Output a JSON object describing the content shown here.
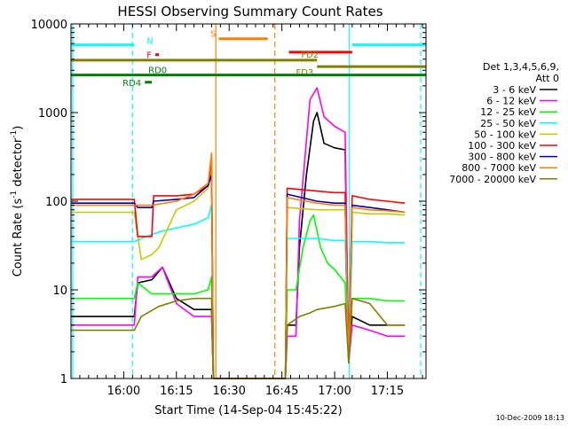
{
  "chart_data": {
    "type": "line",
    "title": "HESSI Observing Summary Count Rates",
    "xlabel": "Start Time (14-Sep-04 15:45:22)",
    "ylabel": "Count Rate (s⁻¹ detector⁻¹)",
    "ylabel_parts": {
      "main": "Count Rate (s",
      "exp1": "-1",
      "mid": " detector",
      "exp2": "-1",
      "end": ")"
    },
    "y_scale": "log",
    "ylim": [
      1,
      10000
    ],
    "y_ticks": [
      1,
      10,
      100,
      1000,
      10000
    ],
    "x_range_minutes": [
      "15:45:22",
      "17:26:40"
    ],
    "x_ticks": [
      "16:00",
      "16:15",
      "16:30",
      "16:45",
      "17:00",
      "17:15"
    ],
    "timestamp": "10-Dec-2009 18:13",
    "legend_title": [
      "Det 1,3,4,5,6,9,",
      "Att 0"
    ],
    "legend_position": "right",
    "series": [
      {
        "name": "3 - 6 keV",
        "color": "#000000",
        "points": [
          [
            "15:45",
            5
          ],
          [
            "16:03",
            5
          ],
          [
            "16:04",
            12
          ],
          [
            "16:08",
            13
          ],
          [
            "16:11",
            18
          ],
          [
            "16:15",
            8
          ],
          [
            "16:20",
            6
          ],
          [
            "16:25",
            6
          ],
          [
            "16:25.5",
            1
          ],
          [
            "16:46",
            1
          ],
          [
            "16:46.5",
            4
          ],
          [
            "16:49",
            4
          ],
          [
            "16:50",
            30
          ],
          [
            "16:52",
            200
          ],
          [
            "16:54",
            800
          ],
          [
            "16:55",
            1000
          ],
          [
            "16:57",
            450
          ],
          [
            "17:00",
            400
          ],
          [
            "17:03",
            380
          ],
          [
            "17:04",
            1.5
          ],
          [
            "17:05",
            5
          ],
          [
            "17:10",
            4
          ],
          [
            "17:15",
            4
          ],
          [
            "17:20",
            4
          ]
        ]
      },
      {
        "name": "6 - 12 keV",
        "color": "#ff00ff",
        "points": [
          [
            "15:45",
            4
          ],
          [
            "16:03",
            4
          ],
          [
            "16:04",
            14
          ],
          [
            "16:08",
            14
          ],
          [
            "16:11",
            18
          ],
          [
            "16:15",
            7
          ],
          [
            "16:20",
            5
          ],
          [
            "16:25",
            5
          ],
          [
            "16:25.5",
            1
          ],
          [
            "16:46",
            1
          ],
          [
            "16:46.5",
            3
          ],
          [
            "16:49",
            3
          ],
          [
            "16:50",
            60
          ],
          [
            "16:53",
            1400
          ],
          [
            "16:55",
            1900
          ],
          [
            "16:57",
            900
          ],
          [
            "17:00",
            700
          ],
          [
            "17:03",
            600
          ],
          [
            "17:04",
            1.5
          ],
          [
            "17:05",
            4
          ],
          [
            "17:10",
            3.5
          ],
          [
            "17:15",
            3
          ],
          [
            "17:20",
            3
          ]
        ]
      },
      {
        "name": "12 - 25 keV",
        "color": "#00ff00",
        "points": [
          [
            "15:45",
            8
          ],
          [
            "16:03",
            8
          ],
          [
            "16:04",
            12
          ],
          [
            "16:08",
            9
          ],
          [
            "16:11",
            9
          ],
          [
            "16:15",
            9
          ],
          [
            "16:20",
            9
          ],
          [
            "16:24",
            10
          ],
          [
            "16:25",
            14
          ],
          [
            "16:25.5",
            1
          ],
          [
            "16:46",
            1
          ],
          [
            "16:46.5",
            10
          ],
          [
            "16:49",
            10
          ],
          [
            "16:51",
            30
          ],
          [
            "16:53",
            60
          ],
          [
            "16:54",
            70
          ],
          [
            "16:56",
            30
          ],
          [
            "16:58",
            20
          ],
          [
            "17:00",
            17
          ],
          [
            "17:03",
            12
          ],
          [
            "17:04",
            1.5
          ],
          [
            "17:05",
            8
          ],
          [
            "17:10",
            8
          ],
          [
            "17:15",
            7.5
          ],
          [
            "17:20",
            7.5
          ]
        ]
      },
      {
        "name": "25 - 50 keV",
        "color": "#00ffff",
        "points": [
          [
            "15:45",
            35
          ],
          [
            "16:03",
            35
          ],
          [
            "16:05",
            38
          ],
          [
            "16:10",
            45
          ],
          [
            "16:15",
            50
          ],
          [
            "16:20",
            55
          ],
          [
            "16:24",
            65
          ],
          [
            "16:25",
            90
          ],
          [
            "16:25.5",
            1
          ],
          [
            "16:46",
            1
          ],
          [
            "16:46.5",
            38
          ],
          [
            "16:55",
            38
          ],
          [
            "17:00",
            36
          ],
          [
            "17:03",
            36
          ],
          [
            "17:04",
            1.5
          ],
          [
            "17:05",
            35
          ],
          [
            "17:10",
            35
          ],
          [
            "17:15",
            34
          ],
          [
            "17:20",
            34
          ]
        ]
      },
      {
        "name": "50 - 100 keV",
        "color": "#c8c800",
        "points": [
          [
            "15:45",
            75
          ],
          [
            "16:03",
            75
          ],
          [
            "16:05",
            22
          ],
          [
            "16:08",
            25
          ],
          [
            "16:10",
            30
          ],
          [
            "16:15",
            80
          ],
          [
            "16:20",
            100
          ],
          [
            "16:24",
            140
          ],
          [
            "16:25",
            280
          ],
          [
            "16:25.5",
            1
          ],
          [
            "16:46",
            1
          ],
          [
            "16:46.5",
            85
          ],
          [
            "16:55",
            80
          ],
          [
            "17:00",
            80
          ],
          [
            "17:03",
            80
          ],
          [
            "17:04",
            1.5
          ],
          [
            "17:05",
            75
          ],
          [
            "17:10",
            72
          ],
          [
            "17:15",
            72
          ],
          [
            "17:20",
            70
          ]
        ]
      },
      {
        "name": "100 - 300 keV",
        "color": "#ff0000",
        "points": [
          [
            "15:45",
            105
          ],
          [
            "16:03",
            105
          ],
          [
            "16:04",
            40
          ],
          [
            "16:08",
            40
          ],
          [
            "16:08.5",
            115
          ],
          [
            "16:15",
            115
          ],
          [
            "16:20",
            120
          ],
          [
            "16:24",
            150
          ],
          [
            "16:25",
            300
          ],
          [
            "16:25.5",
            1
          ],
          [
            "16:46",
            1
          ],
          [
            "16:46.5",
            140
          ],
          [
            "16:55",
            130
          ],
          [
            "17:00",
            125
          ],
          [
            "17:03",
            125
          ],
          [
            "17:04",
            1.5
          ],
          [
            "17:05",
            115
          ],
          [
            "17:10",
            105
          ],
          [
            "17:15",
            100
          ],
          [
            "17:20",
            95
          ]
        ]
      },
      {
        "name": "300 - 800 keV",
        "color": "#0000aa",
        "points": [
          [
            "15:45",
            95
          ],
          [
            "16:03",
            95
          ],
          [
            "16:04",
            85
          ],
          [
            "16:08",
            85
          ],
          [
            "16:08.5",
            100
          ],
          [
            "16:15",
            105
          ],
          [
            "16:20",
            110
          ],
          [
            "16:24",
            150
          ],
          [
            "16:25",
            200
          ],
          [
            "16:25.5",
            1
          ],
          [
            "16:46",
            1
          ],
          [
            "16:46.5",
            120
          ],
          [
            "16:55",
            100
          ],
          [
            "17:00",
            95
          ],
          [
            "17:03",
            95
          ],
          [
            "17:04",
            1.5
          ],
          [
            "17:05",
            90
          ],
          [
            "17:10",
            85
          ],
          [
            "17:15",
            80
          ],
          [
            "17:20",
            75
          ]
        ]
      },
      {
        "name": "800 - 7000 keV",
        "color": "#ff8000",
        "points": [
          [
            "15:45",
            90
          ],
          [
            "16:03",
            90
          ],
          [
            "16:04",
            90
          ],
          [
            "16:08",
            90
          ],
          [
            "16:15",
            100
          ],
          [
            "16:20",
            120
          ],
          [
            "16:24",
            160
          ],
          [
            "16:25",
            350
          ],
          [
            "16:25.5",
            1
          ],
          [
            "16:46",
            1
          ],
          [
            "16:46.5",
            110
          ],
          [
            "16:55",
            95
          ],
          [
            "17:00",
            90
          ],
          [
            "17:03",
            90
          ],
          [
            "17:04",
            1.5
          ],
          [
            "17:05",
            85
          ],
          [
            "17:10",
            80
          ],
          [
            "17:15",
            78
          ],
          [
            "17:20",
            75
          ]
        ]
      },
      {
        "name": "7000 - 20000 keV",
        "color": "#808000",
        "points": [
          [
            "15:45",
            3.5
          ],
          [
            "16:03",
            3.5
          ],
          [
            "16:05",
            5
          ],
          [
            "16:10",
            6.5
          ],
          [
            "16:15",
            7.5
          ],
          [
            "16:20",
            8
          ],
          [
            "16:25",
            8
          ],
          [
            "16:25.5",
            1
          ],
          [
            "16:46",
            1
          ],
          [
            "16:46.5",
            4
          ],
          [
            "16:50",
            5
          ],
          [
            "16:53",
            5.5
          ],
          [
            "16:55",
            6
          ],
          [
            "17:00",
            6.5
          ],
          [
            "17:03",
            7
          ],
          [
            "17:04",
            1.5
          ],
          [
            "17:05",
            8
          ],
          [
            "17:10",
            7
          ],
          [
            "17:13",
            5
          ],
          [
            "17:15",
            4
          ],
          [
            "17:20",
            4
          ]
        ]
      }
    ],
    "flags": [
      {
        "label": "N",
        "color": "#00ffff",
        "y": 5800,
        "segments": [
          [
            "15:45",
            "16:03"
          ],
          [
            "17:05",
            "17:26"
          ]
        ]
      },
      {
        "label": "F",
        "color": "#ff0000",
        "y": 4500,
        "segments": [
          [
            "16:09",
            "16:10"
          ]
        ]
      },
      {
        "label": "S",
        "color": "#ff8000",
        "y": 6800,
        "segments": [
          [
            "16:27",
            "16:41"
          ]
        ]
      },
      {
        "label": "",
        "color": "#ff0000",
        "y": 4800,
        "segments": [
          [
            "16:47",
            "17:05"
          ]
        ]
      },
      {
        "label": "FD2",
        "color": "#808000",
        "y": 3900,
        "segments": [
          [
            "15:45",
            "16:55"
          ]
        ]
      },
      {
        "label": "FD3",
        "color": "#808000",
        "y": 3300,
        "segments": [
          [
            "16:55",
            "17:26"
          ]
        ]
      },
      {
        "label": "RD0",
        "color": "#008000",
        "y": 2650,
        "segments": [
          [
            "15:45",
            "17:26"
          ]
        ]
      },
      {
        "label": "RD4",
        "color": "#008000",
        "y": 2200,
        "segments": [
          [
            "16:06",
            "16:08"
          ]
        ]
      }
    ],
    "vlines": [
      {
        "t": "15:45.5",
        "color": "#00ffff",
        "dash": false
      },
      {
        "t": "16:02.5",
        "color": "#00ffff",
        "dash": true
      },
      {
        "t": "16:26.2",
        "color": "#ff8000",
        "dash": false
      },
      {
        "t": "16:43",
        "color": "#ff8000",
        "dash": true
      },
      {
        "t": "17:04.2",
        "color": "#00ffff",
        "dash": false
      },
      {
        "t": "17:24.5",
        "color": "#00ffff",
        "dash": true
      }
    ]
  }
}
